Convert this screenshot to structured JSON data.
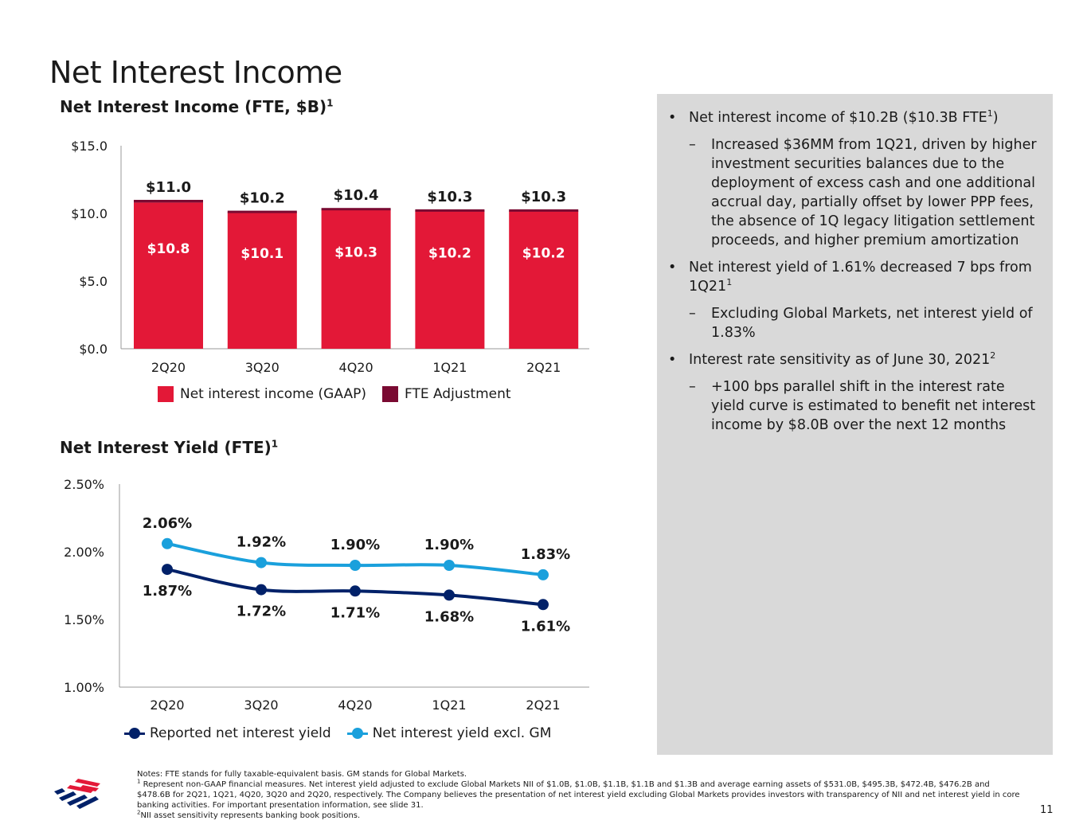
{
  "page": {
    "title": "Net Interest Income",
    "page_number": "11"
  },
  "bar_chart": {
    "title": "Net Interest Income (FTE, $B)",
    "title_sup": "1",
    "legend": [
      {
        "label": "Net interest income (GAAP)",
        "color": "#e31837"
      },
      {
        "label": "FTE Adjustment",
        "color": "#7a0a32"
      }
    ]
  },
  "line_chart": {
    "title": "Net Interest Yield (FTE)",
    "title_sup": "1",
    "legend": [
      {
        "label": "Reported net interest yield",
        "color": "#012169"
      },
      {
        "label": "Net interest yield excl. GM",
        "color": "#1aa0dc"
      }
    ]
  },
  "chart_data": [
    {
      "type": "bar",
      "stacked": true,
      "title": "Net Interest Income (FTE, $B)",
      "categories": [
        "2Q20",
        "3Q20",
        "4Q20",
        "1Q21",
        "2Q21"
      ],
      "ylim": [
        0,
        15
      ],
      "y_ticks": [
        "$0.0",
        "$5.0",
        "$10.0",
        "$15.0"
      ],
      "y_tick_values": [
        0,
        5,
        10,
        15
      ],
      "series": [
        {
          "name": "Net interest income (GAAP)",
          "values": [
            10.8,
            10.1,
            10.3,
            10.2,
            10.2
          ],
          "labels": [
            "$10.8",
            "$10.1",
            "$10.3",
            "$10.2",
            "$10.2"
          ],
          "color": "#e31837"
        },
        {
          "name": "FTE Adjustment",
          "values": [
            0.15,
            0.12,
            0.12,
            0.12,
            0.12
          ],
          "color": "#7a0a32"
        }
      ],
      "totals": [
        "$11.0",
        "$10.2",
        "$10.4",
        "$10.3",
        "$10.3"
      ],
      "total_values": [
        11.0,
        10.2,
        10.4,
        10.3,
        10.3
      ],
      "legend_position": "bottom",
      "grid": false
    },
    {
      "type": "line",
      "title": "Net Interest Yield (FTE)",
      "categories": [
        "2Q20",
        "3Q20",
        "4Q20",
        "1Q21",
        "2Q21"
      ],
      "ylim": [
        1.0,
        2.5
      ],
      "y_ticks": [
        "1.00%",
        "1.50%",
        "2.00%",
        "2.50%"
      ],
      "y_tick_values": [
        1.0,
        1.5,
        2.0,
        2.5
      ],
      "series": [
        {
          "name": "Net interest yield excl. GM",
          "values": [
            2.06,
            1.92,
            1.9,
            1.9,
            1.83
          ],
          "labels": [
            "2.06%",
            "1.92%",
            "1.90%",
            "1.90%",
            "1.83%"
          ],
          "color": "#1aa0dc"
        },
        {
          "name": "Reported net interest yield",
          "values": [
            1.87,
            1.72,
            1.71,
            1.68,
            1.61
          ],
          "labels": [
            "1.87%",
            "1.72%",
            "1.71%",
            "1.68%",
            "1.61%"
          ],
          "color": "#012169"
        }
      ],
      "legend_position": "bottom",
      "grid": false
    }
  ],
  "panel": {
    "b1_text": "Net interest income of $10.2B ($10.3B FTE",
    "b1_sup": "1",
    "b1_end": ")",
    "b1_sub1": "Increased $36MM from 1Q21, driven by higher investment securities balances due to the deployment of excess cash and one additional accrual day, partially offset by lower PPP fees, the absence of 1Q legacy litigation settlement proceeds, and higher premium amortization",
    "b2_text": "Net interest yield of 1.61% decreased 7 bps from 1Q21",
    "b2_sup": "1",
    "b2_sub1": "Excluding Global Markets, net interest yield of 1.83%",
    "b3_text": "Interest rate sensitivity as of June 30, 2021",
    "b3_sup": "2",
    "b3_sub1": "+100 bps parallel shift in the interest rate yield curve is estimated to benefit net interest income by $8.0B over the next 12 months",
    "bullet_mark": "•",
    "sub_mark": "–"
  },
  "notes": {
    "line1": "Notes: FTE stands for fully taxable-equivalent basis. GM stands for Global Markets.",
    "line2_sup": "1",
    "line2": "Represent non-GAAP financial measures. Net interest yield adjusted to exclude Global Markets NII of $1.0B, $1.0B, $1.1B, $1.1B and $1.3B and average earning assets of $531.0B, $495.3B, $472.4B, $476.2B and $478.6B for 2Q21, 1Q21, 4Q20, 3Q20 and 2Q20, respectively. The Company believes the presentation of net interest yield excluding Global Markets provides investors with transparency of NII and net interest yield in core banking activities. For important presentation information, see slide 31.",
    "line3_sup": "2",
    "line3": "NII asset sensitivity represents banking book positions."
  },
  "colors": {
    "brand_red": "#e31837",
    "brand_dark_red": "#7a0a32",
    "navy": "#012169",
    "light_blue": "#1aa0dc",
    "panel_gray": "#d9d9d9"
  },
  "logo": {
    "icon": "bank-flag-logo-icon"
  }
}
